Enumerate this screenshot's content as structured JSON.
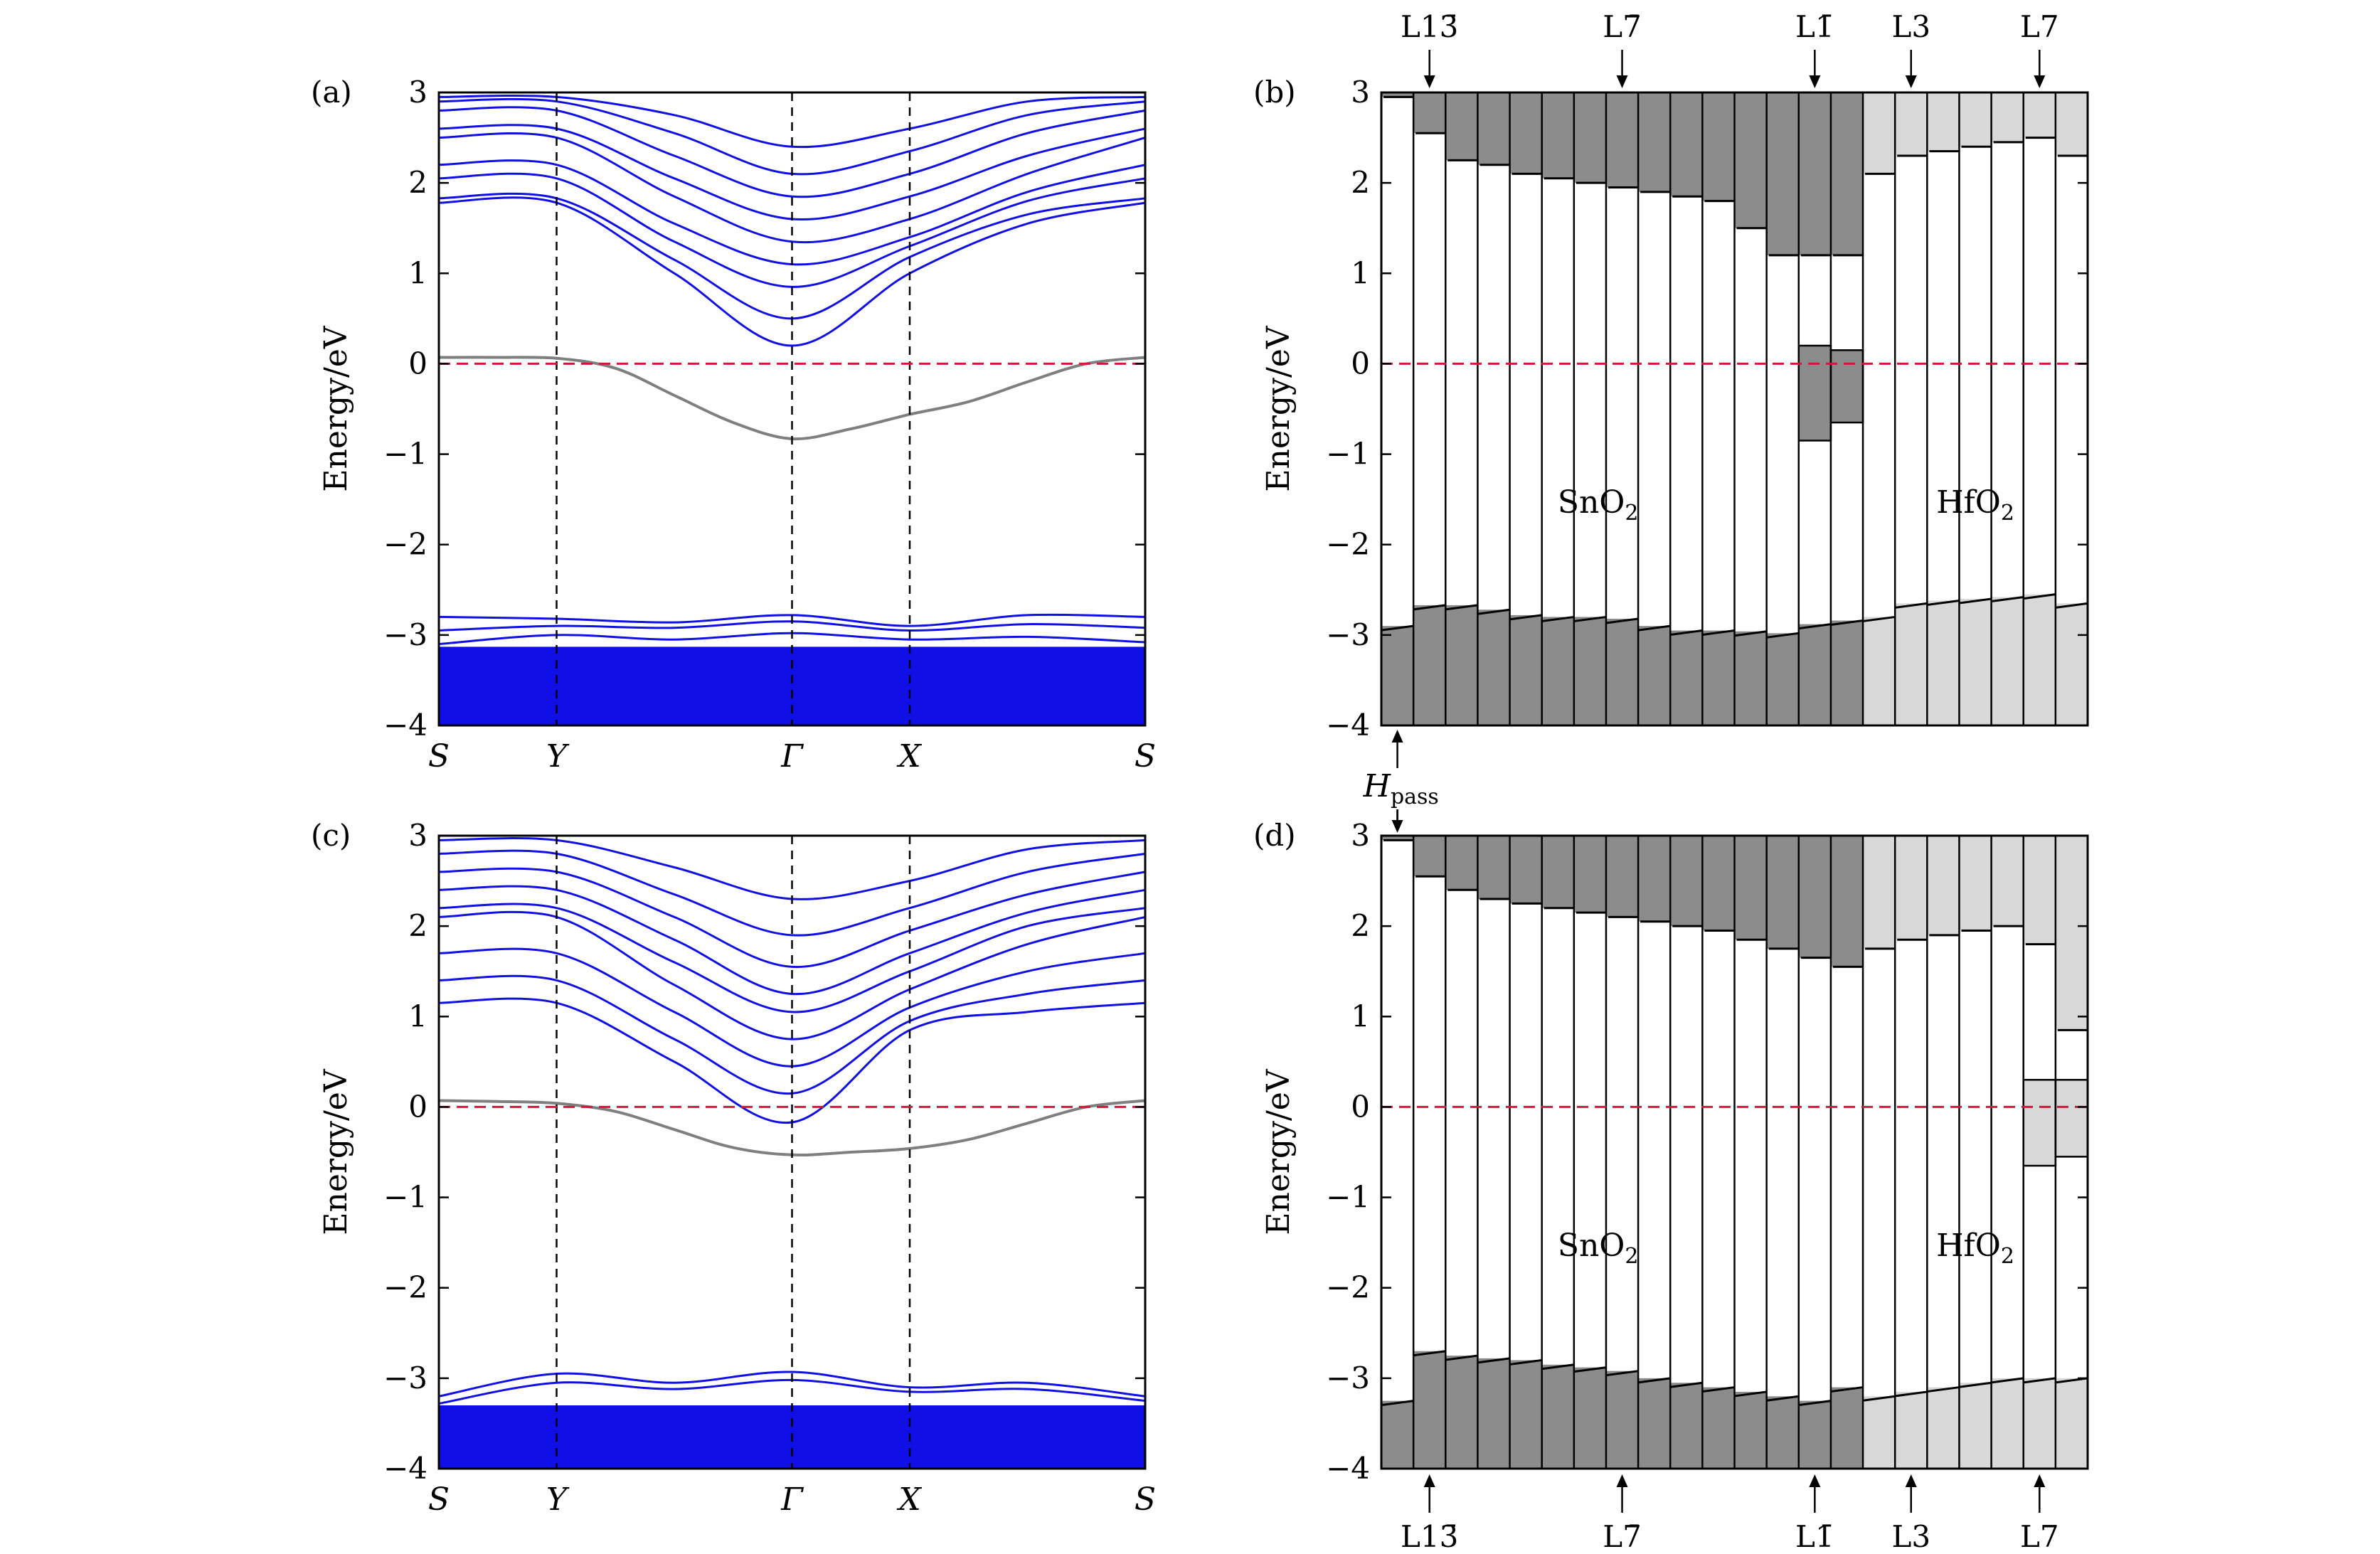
{
  "figure": {
    "zero_line_color": "#e0103a",
    "band_color": "#1010e6",
    "hybrid_band_color": "#7f7f7f",
    "sno2_fill": "#8c8c8c",
    "hfo2_fill": "#d8d8d8"
  },
  "chart_data": [
    {
      "panel": "(a)",
      "type": "line",
      "ylabel": "Energy/eV",
      "ylim": [
        -4,
        3
      ],
      "yticks": [
        "3",
        "2",
        "1",
        "0",
        "−1",
        "−2",
        "−3",
        "−4"
      ],
      "kpath_labels": [
        "S",
        "Y",
        "Γ",
        "X",
        "S"
      ],
      "kpath_positions": [
        0,
        1,
        3,
        4,
        6
      ],
      "vbm_top": -2.78,
      "series": [
        {
          "role": "gap-state",
          "x": [
            0,
            0.5,
            1,
            1.5,
            2,
            2.5,
            3,
            3.5,
            4,
            4.5,
            5,
            5.5,
            6
          ],
          "y": [
            0.07,
            0.07,
            0.06,
            -0.05,
            -0.35,
            -0.65,
            -0.83,
            -0.72,
            -0.56,
            -0.42,
            -0.2,
            0.0,
            0.07
          ]
        },
        {
          "role": "conduction",
          "x": [
            0,
            1,
            2,
            3,
            4,
            5,
            6
          ],
          "y": [
            1.78,
            1.78,
            1.0,
            0.2,
            1.0,
            1.55,
            1.78
          ]
        },
        {
          "role": "conduction",
          "x": [
            0,
            1,
            2,
            3,
            4,
            5,
            6
          ],
          "y": [
            1.83,
            1.83,
            1.15,
            0.5,
            1.18,
            1.65,
            1.83
          ]
        },
        {
          "role": "conduction",
          "x": [
            0,
            1,
            2,
            3,
            4,
            5,
            6
          ],
          "y": [
            2.05,
            2.05,
            1.35,
            0.85,
            1.3,
            1.8,
            2.05
          ]
        },
        {
          "role": "conduction",
          "x": [
            0,
            1,
            2,
            3,
            4,
            5,
            6
          ],
          "y": [
            2.2,
            2.2,
            1.55,
            1.1,
            1.4,
            1.9,
            2.2
          ]
        },
        {
          "role": "conduction",
          "x": [
            0,
            1,
            2,
            3,
            4,
            5,
            6
          ],
          "y": [
            2.5,
            2.5,
            1.85,
            1.35,
            1.6,
            2.1,
            2.5
          ]
        },
        {
          "role": "conduction",
          "x": [
            0,
            1,
            2,
            3,
            4,
            5,
            6
          ],
          "y": [
            2.6,
            2.6,
            2.05,
            1.6,
            1.85,
            2.3,
            2.6
          ]
        },
        {
          "role": "conduction",
          "x": [
            0,
            1,
            2,
            3,
            4,
            5,
            6
          ],
          "y": [
            2.8,
            2.8,
            2.3,
            1.85,
            2.1,
            2.55,
            2.8
          ]
        },
        {
          "role": "conduction",
          "x": [
            0,
            1,
            2,
            3,
            4,
            5,
            6
          ],
          "y": [
            2.9,
            2.9,
            2.55,
            2.1,
            2.35,
            2.75,
            2.9
          ]
        },
        {
          "role": "conduction",
          "x": [
            0,
            1,
            2,
            3,
            4,
            5,
            6
          ],
          "y": [
            2.95,
            2.95,
            2.75,
            2.4,
            2.6,
            2.9,
            2.95
          ]
        },
        {
          "role": "valence",
          "x": [
            0,
            1,
            2,
            3,
            4,
            5,
            6
          ],
          "y": [
            -2.8,
            -2.82,
            -2.86,
            -2.78,
            -2.9,
            -2.78,
            -2.8
          ]
        },
        {
          "role": "valence",
          "x": [
            0,
            1,
            2,
            3,
            4,
            5,
            6
          ],
          "y": [
            -2.95,
            -2.9,
            -2.92,
            -2.85,
            -2.95,
            -2.88,
            -2.92
          ]
        },
        {
          "role": "valence",
          "x": [
            0,
            1,
            2,
            3,
            4,
            5,
            6
          ],
          "y": [
            -3.1,
            -3.0,
            -3.05,
            -2.98,
            -3.05,
            -3.02,
            -3.08
          ]
        }
      ]
    },
    {
      "panel": "(b)",
      "type": "area",
      "ylabel": "Energy/eV",
      "ylim": [
        -4,
        3
      ],
      "yticks": [
        "3",
        "2",
        "1",
        "0",
        "−1",
        "−2",
        "−3",
        "−4"
      ],
      "layer_labels_top": [
        "L13̄",
        "L7̄",
        "L1̄",
        "L3",
        "L7"
      ],
      "layer_label_columns": [
        1,
        7,
        13,
        16,
        20
      ],
      "materials": [
        "SnO2",
        "HfO2"
      ],
      "material_label_text": [
        "SnO",
        "HfO"
      ],
      "material_subscript": "2",
      "sno2_columns": 15,
      "hfo2_columns": 7,
      "vbm": [
        -2.9,
        -2.67,
        -2.67,
        -2.72,
        -2.78,
        -2.8,
        -2.8,
        -2.82,
        -2.9,
        -2.95,
        -2.95,
        -2.96,
        -2.98,
        -2.88,
        -2.84,
        -2.8,
        -2.65,
        -2.62,
        -2.6,
        -2.58,
        -2.55,
        -2.65
      ],
      "cbm": [
        2.95,
        2.55,
        2.25,
        2.2,
        2.1,
        2.05,
        2.0,
        1.95,
        1.9,
        1.85,
        1.8,
        1.5,
        1.2,
        1.2,
        1.2,
        2.1,
        2.3,
        2.35,
        2.4,
        2.45,
        2.5,
        2.3
      ],
      "gap_state_columns": [
        13,
        14
      ],
      "gap_state_top": [
        0.2,
        0.15
      ],
      "gap_state_bottom": [
        -0.85,
        -0.65
      ],
      "annotation_bottom": "H",
      "annotation_bottom_sub": "pass"
    },
    {
      "panel": "(c)",
      "type": "line",
      "ylabel": "Energy/eV",
      "ylim": [
        -4,
        3
      ],
      "yticks": [
        "3",
        "2",
        "1",
        "0",
        "−1",
        "−2",
        "−3",
        "−4"
      ],
      "kpath_labels": [
        "S",
        "Y",
        "Γ",
        "X",
        "S"
      ],
      "kpath_positions": [
        0,
        1,
        3,
        4,
        6
      ],
      "vbm_top": -2.95,
      "series": [
        {
          "role": "gap-state",
          "x": [
            0,
            0.5,
            1,
            1.5,
            2,
            2.5,
            3,
            3.5,
            4,
            4.5,
            5,
            5.5,
            6
          ],
          "y": [
            0.07,
            0.06,
            0.04,
            -0.05,
            -0.25,
            -0.45,
            -0.53,
            -0.5,
            -0.46,
            -0.36,
            -0.18,
            0.0,
            0.07
          ]
        },
        {
          "role": "conduction",
          "x": [
            0,
            1,
            2,
            3,
            4,
            5,
            6
          ],
          "y": [
            1.15,
            1.15,
            0.5,
            -0.17,
            0.85,
            1.05,
            1.15
          ]
        },
        {
          "role": "conduction",
          "x": [
            0,
            1,
            2,
            3,
            4,
            5,
            6
          ],
          "y": [
            1.4,
            1.4,
            0.75,
            0.15,
            0.95,
            1.25,
            1.4
          ]
        },
        {
          "role": "conduction",
          "x": [
            0,
            1,
            2,
            3,
            4,
            5,
            6
          ],
          "y": [
            1.7,
            1.7,
            1.05,
            0.45,
            1.1,
            1.5,
            1.7
          ]
        },
        {
          "role": "conduction",
          "x": [
            0,
            1,
            2,
            3,
            4,
            5,
            6
          ],
          "y": [
            2.1,
            2.1,
            1.35,
            0.75,
            1.3,
            1.8,
            2.1
          ]
        },
        {
          "role": "conduction",
          "x": [
            0,
            1,
            2,
            3,
            4,
            5,
            6
          ],
          "y": [
            2.2,
            2.2,
            1.6,
            1.05,
            1.5,
            2.0,
            2.2
          ]
        },
        {
          "role": "conduction",
          "x": [
            0,
            1,
            2,
            3,
            4,
            5,
            6
          ],
          "y": [
            2.4,
            2.4,
            1.85,
            1.25,
            1.7,
            2.15,
            2.4
          ]
        },
        {
          "role": "conduction",
          "x": [
            0,
            1,
            2,
            3,
            4,
            5,
            6
          ],
          "y": [
            2.6,
            2.6,
            2.1,
            1.55,
            1.95,
            2.35,
            2.6
          ]
        },
        {
          "role": "conduction",
          "x": [
            0,
            1,
            2,
            3,
            4,
            5,
            6
          ],
          "y": [
            2.8,
            2.8,
            2.35,
            1.9,
            2.2,
            2.6,
            2.8
          ]
        },
        {
          "role": "conduction",
          "x": [
            0,
            1,
            2,
            3,
            4,
            5,
            6
          ],
          "y": [
            2.95,
            2.95,
            2.65,
            2.3,
            2.5,
            2.85,
            2.95
          ]
        },
        {
          "role": "valence",
          "x": [
            0,
            1,
            2,
            3,
            4,
            5,
            6
          ],
          "y": [
            -3.2,
            -2.95,
            -3.05,
            -2.93,
            -3.1,
            -3.05,
            -3.2
          ]
        },
        {
          "role": "valence",
          "x": [
            0,
            1,
            2,
            3,
            4,
            5,
            6
          ],
          "y": [
            -3.28,
            -3.05,
            -3.12,
            -3.02,
            -3.15,
            -3.12,
            -3.25
          ]
        }
      ]
    },
    {
      "panel": "(d)",
      "type": "area",
      "ylabel": "Energy/eV",
      "ylim": [
        -4,
        3
      ],
      "yticks": [
        "3",
        "2",
        "1",
        "0",
        "−1",
        "−2",
        "−3",
        "−4"
      ],
      "layer_labels_bottom": [
        "L13̄",
        "L7̄",
        "L1̄",
        "L3",
        "L7"
      ],
      "layer_label_columns": [
        1,
        7,
        13,
        16,
        20
      ],
      "materials": [
        "SnO2",
        "HfO2"
      ],
      "material_label_text": [
        "SnO",
        "HfO"
      ],
      "material_subscript": "2",
      "sno2_columns": 15,
      "hfo2_columns": 7,
      "vbm": [
        -3.25,
        -2.7,
        -2.75,
        -2.78,
        -2.8,
        -2.85,
        -2.88,
        -2.92,
        -3.0,
        -3.05,
        -3.1,
        -3.15,
        -3.2,
        -3.25,
        -3.1,
        -3.2,
        -3.15,
        -3.1,
        -3.05,
        -3.0,
        -3.0,
        -3.0
      ],
      "cbm": [
        2.95,
        2.55,
        2.4,
        2.3,
        2.25,
        2.2,
        2.15,
        2.1,
        2.05,
        2.0,
        1.95,
        1.85,
        1.75,
        1.65,
        1.55,
        1.75,
        1.85,
        1.9,
        1.95,
        2.0,
        1.8,
        0.85
      ],
      "gap_state_columns": [
        20,
        21
      ],
      "gap_state_top": [
        0.3,
        0.3
      ],
      "gap_state_bottom": [
        -0.65,
        -0.55
      ]
    }
  ]
}
